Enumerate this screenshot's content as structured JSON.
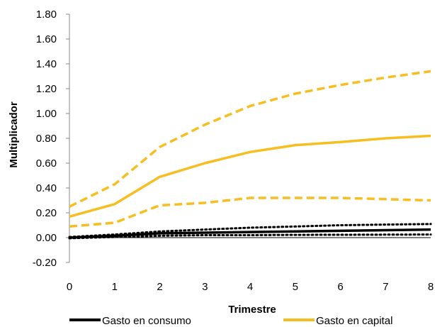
{
  "chart_data": {
    "type": "line",
    "xlabel": "Trimestre",
    "ylabel": "Multiplicador",
    "ylim": [
      -0.2,
      1.8
    ],
    "xlim": [
      0,
      8
    ],
    "y_ticks": [
      "1.80",
      "1.60",
      "1.40",
      "1.20",
      "1.00",
      "0.80",
      "0.60",
      "0.40",
      "0.20",
      "0.00",
      "-0.20"
    ],
    "x_ticks": [
      "0",
      "1",
      "2",
      "3",
      "4",
      "5",
      "6",
      "7",
      "8"
    ],
    "grid": false,
    "legend_position": "bottom",
    "x": [
      0,
      1,
      2,
      3,
      4,
      5,
      6,
      7,
      8
    ],
    "series": [
      {
        "name": "Gasto en consumo",
        "role": "estimate",
        "style": "solid",
        "color": "#000000",
        "values": [
          0.0,
          0.015,
          0.035,
          0.04,
          0.045,
          0.05,
          0.055,
          0.06,
          0.065
        ]
      },
      {
        "name": "",
        "role": "upper band",
        "style": "dotted",
        "color": "#000000",
        "values": [
          0.005,
          0.025,
          0.05,
          0.065,
          0.08,
          0.09,
          0.1,
          0.105,
          0.11
        ]
      },
      {
        "name": "",
        "role": "lower band",
        "style": "dotted",
        "color": "#000000",
        "values": [
          -0.005,
          0.005,
          0.015,
          0.02,
          0.02,
          0.022,
          0.023,
          0.024,
          0.025
        ]
      },
      {
        "name": "Gasto en capital",
        "role": "estimate",
        "style": "solid",
        "color": "#F7BE21",
        "values": [
          0.17,
          0.27,
          0.49,
          0.6,
          0.69,
          0.745,
          0.77,
          0.8,
          0.82
        ]
      },
      {
        "name": "",
        "role": "upper band",
        "style": "dashed",
        "color": "#F7BE21",
        "values": [
          0.25,
          0.43,
          0.73,
          0.91,
          1.06,
          1.16,
          1.23,
          1.29,
          1.34
        ]
      },
      {
        "name": "",
        "role": "lower band",
        "style": "dashed",
        "color": "#F7BE21",
        "values": [
          0.09,
          0.12,
          0.26,
          0.28,
          0.32,
          0.32,
          0.32,
          0.31,
          0.3
        ]
      }
    ],
    "legend": [
      {
        "label": "Gasto en consumo",
        "color": "#000000"
      },
      {
        "label": "Gasto en capital",
        "color": "#F7BE21"
      }
    ]
  }
}
